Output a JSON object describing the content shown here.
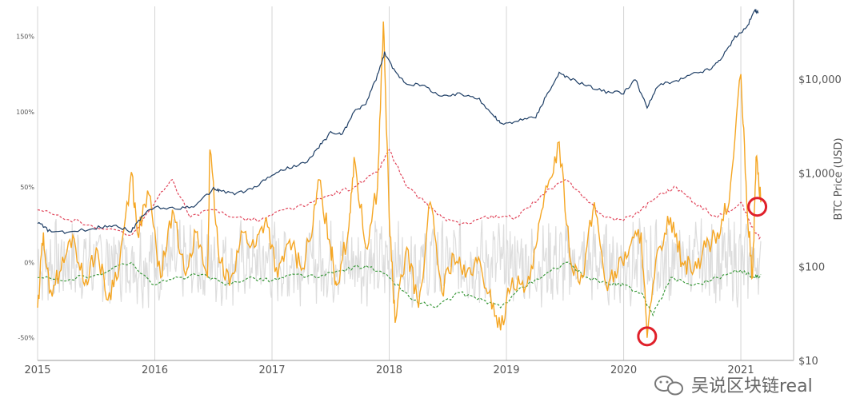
{
  "chart_data": {
    "type": "line",
    "title": "",
    "ylabel_right": "BTC Price (USD)",
    "x_ticks": [
      "2015",
      "2016",
      "2017",
      "2018",
      "2019",
      "2020",
      "2021"
    ],
    "y_left_ticks": [
      {
        "value": 150,
        "label": "150%"
      },
      {
        "value": 100,
        "label": "100%"
      },
      {
        "value": 50,
        "label": "50%"
      },
      {
        "value": 0,
        "label": "0%"
      },
      {
        "value": -50,
        "label": "-50%"
      }
    ],
    "y_left_range": [
      -65,
      170
    ],
    "y_right_ticks": [
      {
        "value": 10,
        "label": "$10"
      },
      {
        "value": 100,
        "label": "$100"
      },
      {
        "value": 1000,
        "label": "$1,000"
      },
      {
        "value": 10000,
        "label": "$10,000"
      }
    ],
    "y_right_range": [
      10,
      60000
    ],
    "y_right_scale": "log",
    "x_range": [
      2015.0,
      2021.45
    ],
    "series": [
      {
        "key": "btc_price",
        "axis": "right",
        "color": "#1f3f66",
        "style": "solid",
        "points": [
          [
            2015.0,
            300
          ],
          [
            2015.1,
            240
          ],
          [
            2015.25,
            230
          ],
          [
            2015.5,
            260
          ],
          [
            2015.65,
            280
          ],
          [
            2015.8,
            240
          ],
          [
            2015.9,
            360
          ],
          [
            2016.0,
            430
          ],
          [
            2016.2,
            420
          ],
          [
            2016.35,
            450
          ],
          [
            2016.5,
            680
          ],
          [
            2016.55,
            650
          ],
          [
            2016.7,
            600
          ],
          [
            2016.85,
            700
          ],
          [
            2017.0,
            960
          ],
          [
            2017.15,
            1150
          ],
          [
            2017.3,
            1300
          ],
          [
            2017.4,
            1900
          ],
          [
            2017.5,
            2700
          ],
          [
            2017.6,
            2600
          ],
          [
            2017.7,
            4500
          ],
          [
            2017.8,
            5500
          ],
          [
            2017.9,
            11000
          ],
          [
            2017.96,
            19000
          ],
          [
            2018.05,
            12000
          ],
          [
            2018.15,
            9000
          ],
          [
            2018.3,
            8500
          ],
          [
            2018.45,
            6500
          ],
          [
            2018.6,
            7000
          ],
          [
            2018.75,
            6400
          ],
          [
            2018.9,
            4000
          ],
          [
            2018.96,
            3300
          ],
          [
            2019.1,
            3600
          ],
          [
            2019.25,
            4000
          ],
          [
            2019.35,
            7000
          ],
          [
            2019.45,
            11500
          ],
          [
            2019.55,
            10000
          ],
          [
            2019.7,
            8500
          ],
          [
            2019.85,
            7300
          ],
          [
            2020.0,
            7200
          ],
          [
            2020.1,
            10000
          ],
          [
            2020.2,
            5000
          ],
          [
            2020.3,
            8800
          ],
          [
            2020.45,
            9500
          ],
          [
            2020.6,
            11500
          ],
          [
            2020.75,
            13000
          ],
          [
            2020.85,
            18000
          ],
          [
            2020.95,
            28000
          ],
          [
            2021.05,
            36000
          ],
          [
            2021.12,
            55000
          ],
          [
            2021.15,
            51000
          ]
        ]
      },
      {
        "key": "mvrv_deviation",
        "axis": "left",
        "color": "#f5a623",
        "style": "solid",
        "points": [
          [
            2015.0,
            -30
          ],
          [
            2015.05,
            20
          ],
          [
            2015.1,
            -20
          ],
          [
            2015.2,
            -5
          ],
          [
            2015.3,
            18
          ],
          [
            2015.4,
            -15
          ],
          [
            2015.5,
            10
          ],
          [
            2015.6,
            -25
          ],
          [
            2015.7,
            0
          ],
          [
            2015.8,
            60
          ],
          [
            2015.85,
            20
          ],
          [
            2015.95,
            45
          ],
          [
            2016.05,
            -10
          ],
          [
            2016.15,
            35
          ],
          [
            2016.25,
            -5
          ],
          [
            2016.35,
            20
          ],
          [
            2016.45,
            -10
          ],
          [
            2016.47,
            75
          ],
          [
            2016.55,
            0
          ],
          [
            2016.65,
            -10
          ],
          [
            2016.75,
            20
          ],
          [
            2016.85,
            10
          ],
          [
            2016.95,
            30
          ],
          [
            2017.05,
            -10
          ],
          [
            2017.15,
            15
          ],
          [
            2017.25,
            -5
          ],
          [
            2017.35,
            25
          ],
          [
            2017.4,
            55
          ],
          [
            2017.5,
            10
          ],
          [
            2017.55,
            -15
          ],
          [
            2017.65,
            20
          ],
          [
            2017.7,
            70
          ],
          [
            2017.8,
            10
          ],
          [
            2017.9,
            50
          ],
          [
            2017.95,
            160
          ],
          [
            2018.0,
            30
          ],
          [
            2018.05,
            -40
          ],
          [
            2018.15,
            10
          ],
          [
            2018.25,
            -30
          ],
          [
            2018.35,
            40
          ],
          [
            2018.45,
            -20
          ],
          [
            2018.55,
            5
          ],
          [
            2018.65,
            -10
          ],
          [
            2018.75,
            0
          ],
          [
            2018.85,
            -20
          ],
          [
            2018.95,
            -45
          ],
          [
            2019.05,
            -10
          ],
          [
            2019.15,
            -20
          ],
          [
            2019.25,
            10
          ],
          [
            2019.35,
            50
          ],
          [
            2019.45,
            80
          ],
          [
            2019.55,
            0
          ],
          [
            2019.65,
            -10
          ],
          [
            2019.75,
            40
          ],
          [
            2019.85,
            -15
          ],
          [
            2019.95,
            -5
          ],
          [
            2020.05,
            10
          ],
          [
            2020.15,
            20
          ],
          [
            2020.2,
            -50
          ],
          [
            2020.3,
            10
          ],
          [
            2020.4,
            30
          ],
          [
            2020.5,
            0
          ],
          [
            2020.6,
            -5
          ],
          [
            2020.7,
            10
          ],
          [
            2020.8,
            20
          ],
          [
            2020.9,
            40
          ],
          [
            2021.0,
            125
          ],
          [
            2021.05,
            40
          ],
          [
            2021.1,
            -10
          ],
          [
            2021.13,
            70
          ],
          [
            2021.17,
            40
          ]
        ]
      },
      {
        "key": "upper_band",
        "axis": "left",
        "color": "#e0455a",
        "style": "dashed",
        "points": [
          [
            2015.0,
            35
          ],
          [
            2015.2,
            30
          ],
          [
            2015.45,
            25
          ],
          [
            2015.8,
            18
          ],
          [
            2016.0,
            40
          ],
          [
            2016.15,
            55
          ],
          [
            2016.3,
            30
          ],
          [
            2016.5,
            35
          ],
          [
            2016.7,
            30
          ],
          [
            2016.9,
            28
          ],
          [
            2017.1,
            35
          ],
          [
            2017.3,
            38
          ],
          [
            2017.5,
            45
          ],
          [
            2017.7,
            50
          ],
          [
            2017.9,
            60
          ],
          [
            2018.0,
            75
          ],
          [
            2018.15,
            50
          ],
          [
            2018.3,
            40
          ],
          [
            2018.45,
            30
          ],
          [
            2018.6,
            25
          ],
          [
            2018.8,
            30
          ],
          [
            2018.95,
            30
          ],
          [
            2019.1,
            30
          ],
          [
            2019.3,
            45
          ],
          [
            2019.5,
            55
          ],
          [
            2019.7,
            40
          ],
          [
            2019.85,
            30
          ],
          [
            2020.0,
            28
          ],
          [
            2020.15,
            35
          ],
          [
            2020.3,
            45
          ],
          [
            2020.45,
            50
          ],
          [
            2020.6,
            40
          ],
          [
            2020.8,
            30
          ],
          [
            2021.0,
            40
          ],
          [
            2021.12,
            20
          ],
          [
            2021.17,
            16
          ]
        ]
      },
      {
        "key": "lower_band",
        "axis": "left",
        "color": "#3c9a3c",
        "style": "dashed",
        "points": [
          [
            2015.0,
            -10
          ],
          [
            2015.2,
            -12
          ],
          [
            2015.5,
            -8
          ],
          [
            2015.8,
            0
          ],
          [
            2016.0,
            -15
          ],
          [
            2016.2,
            -10
          ],
          [
            2016.4,
            -8
          ],
          [
            2016.6,
            -15
          ],
          [
            2016.8,
            -10
          ],
          [
            2017.0,
            -12
          ],
          [
            2017.2,
            -8
          ],
          [
            2017.4,
            -10
          ],
          [
            2017.6,
            -5
          ],
          [
            2017.8,
            -2
          ],
          [
            2018.0,
            -10
          ],
          [
            2018.2,
            -25
          ],
          [
            2018.4,
            -30
          ],
          [
            2018.6,
            -20
          ],
          [
            2018.8,
            -25
          ],
          [
            2018.95,
            -30
          ],
          [
            2019.1,
            -18
          ],
          [
            2019.3,
            -10
          ],
          [
            2019.5,
            0
          ],
          [
            2019.7,
            -10
          ],
          [
            2019.9,
            -15
          ],
          [
            2020.0,
            -15
          ],
          [
            2020.15,
            -20
          ],
          [
            2020.25,
            -35
          ],
          [
            2020.4,
            -10
          ],
          [
            2020.6,
            -15
          ],
          [
            2020.8,
            -10
          ],
          [
            2021.0,
            -5
          ],
          [
            2021.12,
            -10
          ],
          [
            2021.17,
            -8
          ]
        ]
      }
    ],
    "annotations": [
      {
        "type": "circle",
        "color": "#e0202a",
        "x": 2020.2,
        "y_left": -49
      },
      {
        "type": "circle",
        "color": "#e0202a",
        "x": 2021.14,
        "y_left": 37
      }
    ],
    "grid": "vertical-only",
    "background_noise_color": "#d9d9d9",
    "legend": "none"
  },
  "watermark": {
    "text": "吴说区块链real",
    "icon": "wechat-icon"
  }
}
